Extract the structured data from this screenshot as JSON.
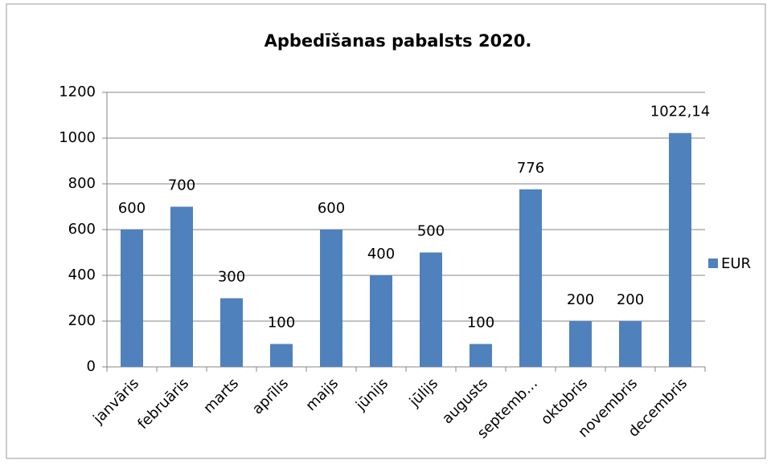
{
  "chart_data": {
    "type": "bar",
    "title": "Apbedīšanas pabalsts 2020.",
    "categories": [
      "janvāris",
      "februāris",
      "marts",
      "aprīlis",
      "maijs",
      "jūnijs",
      "jūlijs",
      "augusts",
      "septemb…",
      "oktobris",
      "novembris",
      "decembris"
    ],
    "series": [
      {
        "name": "EUR",
        "color": "#4f81bd",
        "values": [
          600,
          700,
          300,
          100,
          600,
          400,
          500,
          100,
          776,
          200,
          200,
          1022.14
        ],
        "value_labels": [
          "600",
          "700",
          "300",
          "100",
          "600",
          "400",
          "500",
          "100",
          "776",
          "200",
          "200",
          "1022,14"
        ]
      }
    ],
    "ylim": [
      0,
      1200
    ],
    "yticks": [
      0,
      200,
      400,
      600,
      800,
      1000,
      1200
    ],
    "grid": true,
    "legend": "right"
  }
}
